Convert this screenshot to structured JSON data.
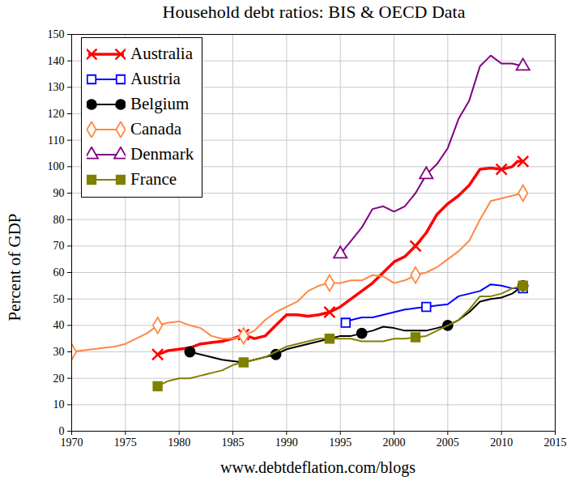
{
  "chart_data": {
    "type": "line",
    "title": "Household debt ratios: BIS & OECD Data",
    "y_label": "Percent of GDP",
    "caption": "www.debtdeflation.com/blogs",
    "xlim": [
      1970,
      2015
    ],
    "xticks": [
      1970,
      1975,
      1980,
      1985,
      1990,
      1995,
      2000,
      2005,
      2010,
      2015
    ],
    "ylim": [
      0,
      150
    ],
    "yticks": [
      0,
      10,
      20,
      30,
      40,
      50,
      60,
      70,
      80,
      90,
      100,
      110,
      120,
      130,
      140,
      150
    ],
    "grid": true,
    "legend": "top-left",
    "series": [
      {
        "name": "Australia",
        "color": "#ff0000",
        "marker": "x",
        "x": [
          1978,
          1979,
          1980,
          1981,
          1982,
          1983,
          1984,
          1985,
          1986,
          1987,
          1988,
          1989,
          1990,
          1991,
          1992,
          1993,
          1994,
          1995,
          1996,
          1997,
          1998,
          1999,
          2000,
          2001,
          2002,
          2003,
          2004,
          2005,
          2006,
          2007,
          2008,
          2009,
          2010,
          2011,
          2011.5,
          2012
        ],
        "values": [
          29,
          30.5,
          31,
          31.5,
          33,
          33.5,
          34,
          35,
          36.5,
          35,
          36,
          40,
          44,
          44,
          43.5,
          44,
          45,
          47,
          50,
          53,
          56,
          60,
          64,
          66,
          70,
          75,
          82,
          86,
          89,
          93,
          99,
          99.5,
          99,
          100,
          102,
          102
        ]
      },
      {
        "name": "Austria",
        "color": "#0000ff",
        "marker": "square-open",
        "x": [
          1995.5,
          1996,
          1997,
          1998,
          1999,
          2000,
          2001,
          2002,
          2003,
          2004,
          2005,
          2006,
          2007,
          2008,
          2009,
          2010,
          2011,
          2012
        ],
        "values": [
          41,
          42,
          43,
          43,
          44,
          45,
          46,
          46.5,
          47,
          47.5,
          48,
          51,
          52,
          53,
          55.5,
          55,
          54,
          54
        ]
      },
      {
        "name": "Belgium",
        "color": "#000000",
        "marker": "circle",
        "x": [
          1981,
          1982,
          1983,
          1984,
          1985,
          1986,
          1987,
          1988,
          1989,
          1990,
          1991,
          1992,
          1993,
          1994,
          1995,
          1996,
          1997,
          1998,
          1999,
          2000,
          2001,
          2002,
          2003,
          2004,
          2005,
          2006,
          2007,
          2008,
          2009,
          2010,
          2011,
          2012
        ],
        "values": [
          30,
          29,
          28,
          27,
          26.5,
          26,
          27,
          28,
          29,
          31,
          32,
          33,
          34,
          35,
          36,
          36,
          37,
          38,
          39.5,
          39,
          38,
          38,
          38,
          39,
          40,
          42,
          45,
          49,
          50,
          50.5,
          52,
          55
        ]
      },
      {
        "name": "Canada",
        "color": "#ff8844",
        "marker": "diamond-open",
        "x": [
          1970,
          1971,
          1972,
          1973,
          1974,
          1975,
          1976,
          1977,
          1978,
          1979,
          1980,
          1981,
          1982,
          1983,
          1984,
          1985,
          1986,
          1987,
          1988,
          1989,
          1990,
          1991,
          1992,
          1993,
          1994,
          1995,
          1996,
          1997,
          1998,
          1999,
          2000,
          2001,
          2002,
          2003,
          2004,
          2005,
          2006,
          2007,
          2008,
          2009,
          2010,
          2011,
          2012
        ],
        "values": [
          30,
          30.5,
          31,
          31.5,
          32,
          33,
          35,
          37,
          40,
          41,
          41.5,
          40,
          39,
          36,
          35,
          35,
          36,
          38,
          42,
          45,
          47,
          49,
          53,
          55,
          56,
          56,
          57,
          57,
          59,
          58.5,
          56,
          57,
          59,
          60,
          62,
          65,
          68,
          72,
          80,
          87,
          88,
          89,
          90
        ]
      },
      {
        "name": "Denmark",
        "color": "#800080",
        "marker": "triangle-open",
        "x": [
          1995,
          1996,
          1997,
          1998,
          1999,
          2000,
          2001,
          2002,
          2003,
          2004,
          2005,
          2006,
          2007,
          2008,
          2009,
          2010,
          2011,
          2012
        ],
        "values": [
          67,
          72,
          77,
          84,
          85,
          83,
          85,
          90,
          97,
          101,
          107,
          118,
          125,
          138,
          142,
          139,
          139,
          138
        ]
      },
      {
        "name": "France",
        "color": "#808000",
        "marker": "square",
        "x": [
          1978,
          1979,
          1980,
          1981,
          1982,
          1983,
          1984,
          1985,
          1986,
          1987,
          1988,
          1989,
          1990,
          1991,
          1992,
          1993,
          1994,
          1995,
          1996,
          1997,
          1998,
          1999,
          2000,
          2001,
          2002,
          2003,
          2004,
          2005,
          2006,
          2007,
          2008,
          2009,
          2010,
          2011,
          2012
        ],
        "values": [
          17,
          19,
          20,
          20,
          21,
          22,
          23,
          25,
          26,
          27,
          28,
          30,
          32,
          33,
          34,
          35,
          35,
          35,
          35,
          34,
          34,
          34,
          35,
          35,
          35.5,
          36,
          38,
          40,
          42,
          46,
          51,
          51,
          52,
          54,
          55
        ]
      }
    ]
  }
}
